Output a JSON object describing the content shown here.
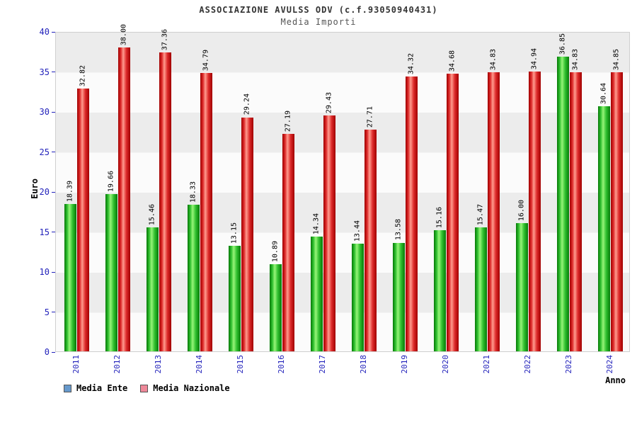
{
  "header": {
    "title": "ASSOCIAZIONE AVULSS ODV (c.f.93050940431)",
    "subtitle": "Media Importi"
  },
  "chart_data": {
    "type": "bar",
    "title": "ASSOCIAZIONE AVULSS ODV (c.f.93050940431)",
    "subtitle": "Media Importi",
    "xlabel": "Anno",
    "ylabel": "Euro",
    "ylim": [
      0,
      40
    ],
    "yticks": [
      0,
      5,
      10,
      15,
      20,
      25,
      30,
      35,
      40
    ],
    "grid": "horizontal-bands",
    "legend_position": "bottom-left",
    "categories": [
      "2011",
      "2012",
      "2013",
      "2014",
      "2015",
      "2016",
      "2017",
      "2018",
      "2019",
      "2020",
      "2021",
      "2022",
      "2023",
      "2024"
    ],
    "series": [
      {
        "name": "Media Ente",
        "legend_color": "#6699cc",
        "bar_colors": {
          "edge": "#067806",
          "mid": "#2fbf2f",
          "highlight": "#97f578"
        },
        "values": [
          18.39,
          19.66,
          15.46,
          18.33,
          13.15,
          10.89,
          14.34,
          13.44,
          13.58,
          15.16,
          15.47,
          16.0,
          36.85,
          30.64
        ]
      },
      {
        "name": "Media Nazionale",
        "legend_color": "#ee8899",
        "bar_colors": {
          "edge": "#a00000",
          "mid": "#dd2a2a",
          "highlight": "#ff9b8e"
        },
        "values": [
          32.82,
          38.0,
          37.36,
          34.79,
          29.24,
          27.19,
          29.43,
          27.71,
          34.32,
          34.68,
          34.83,
          34.94,
          34.83,
          34.85
        ]
      }
    ]
  }
}
